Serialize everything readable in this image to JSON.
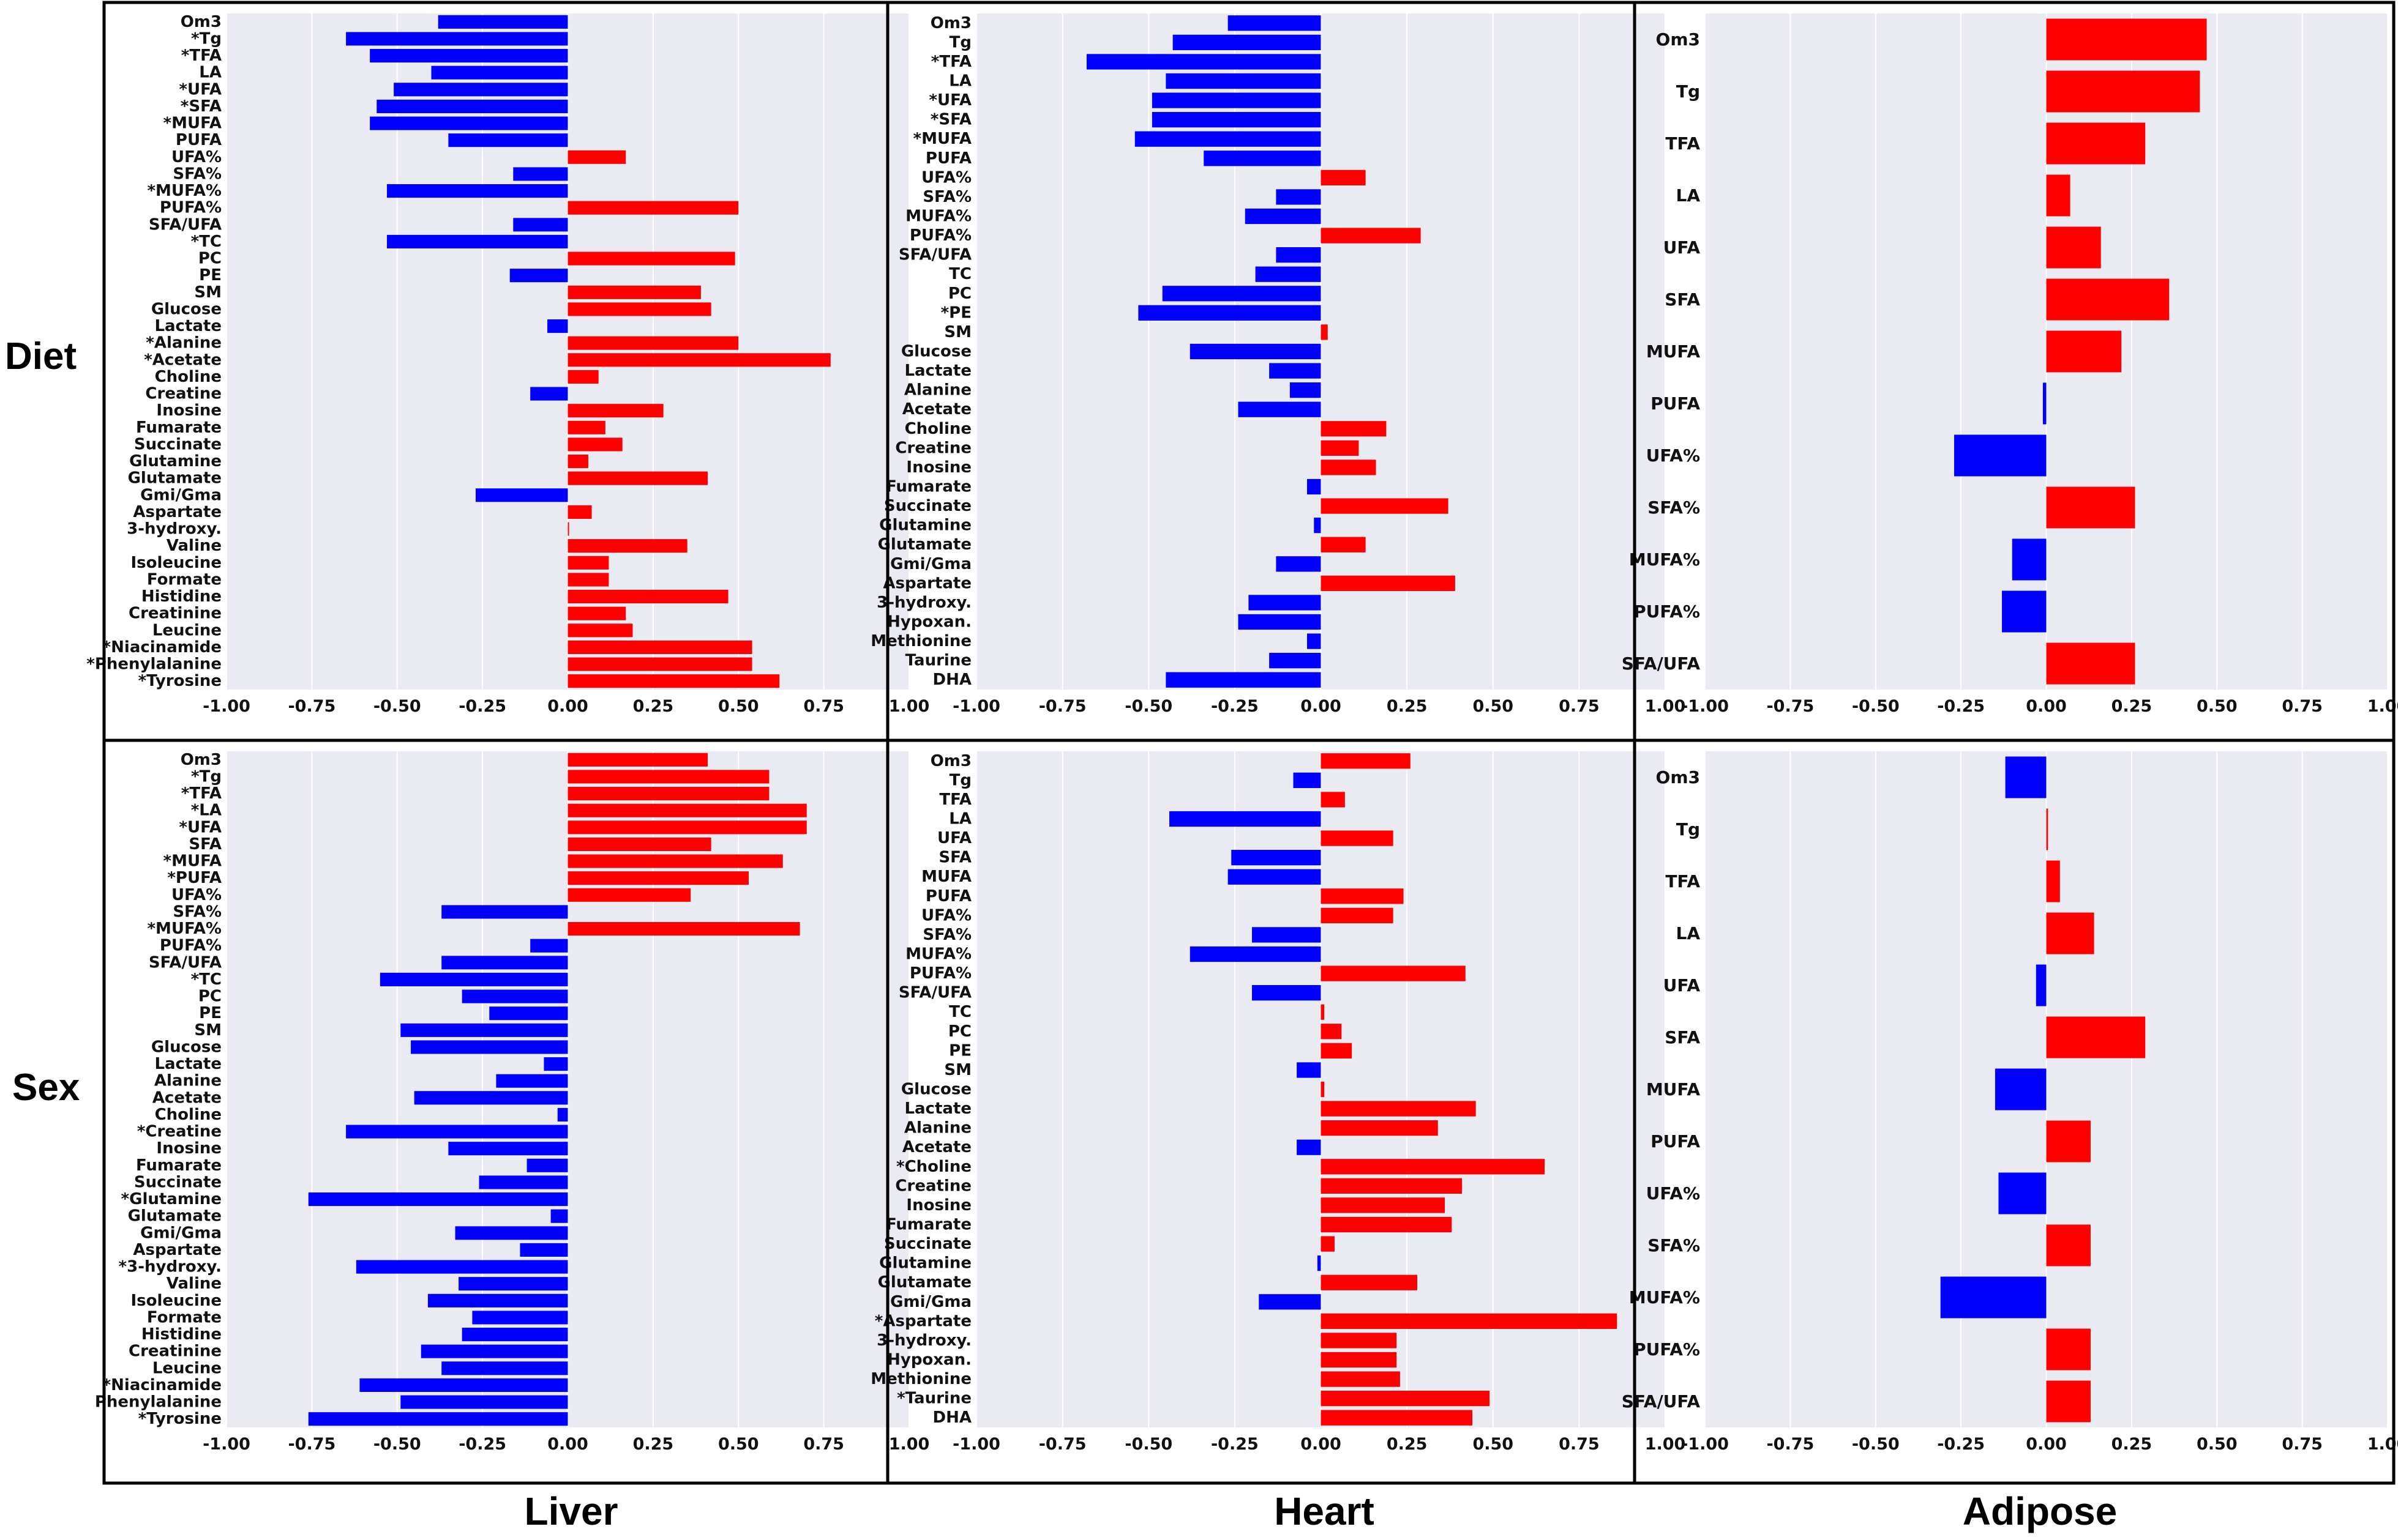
{
  "figure": {
    "row_labels": [
      "Diet",
      "Sex"
    ],
    "column_labels": [
      "Liver",
      "Heart",
      "Adipose"
    ],
    "colors": {
      "positive": "#ff0000",
      "negative": "#0000ff",
      "plot_bg": "#eaeaf2",
      "grid": "#ffffff",
      "frame": "#000000"
    }
  },
  "chart_data": [
    {
      "type": "bar",
      "orientation": "horizontal",
      "row": "Diet",
      "column": "Liver",
      "xlim": [
        -1.0,
        1.0
      ],
      "xticks": [
        "-1.00",
        "-0.75",
        "-0.50",
        "-0.25",
        "0.00",
        "0.25",
        "0.50",
        "0.75",
        "1.00"
      ],
      "categories": [
        "Om3",
        "*Tg",
        "*TFA",
        "LA",
        "*UFA",
        "*SFA",
        "*MUFA",
        "PUFA",
        "UFA%",
        "SFA%",
        "*MUFA%",
        "PUFA%",
        "SFA/UFA",
        "*TC",
        "PC",
        "PE",
        "SM",
        "Glucose",
        "Lactate",
        "*Alanine",
        "*Acetate",
        "Choline",
        "Creatine",
        "Inosine",
        "Fumarate",
        "Succinate",
        "Glutamine",
        "Glutamate",
        "Gmi/Gma",
        "Aspartate",
        "3-hydroxy.",
        "Valine",
        "Isoleucine",
        "Formate",
        "Histidine",
        "Creatinine",
        "Leucine",
        "*Niacinamide",
        "*Phenylalanine",
        "*Tyrosine"
      ],
      "values": [
        -0.38,
        -0.65,
        -0.58,
        -0.4,
        -0.51,
        -0.56,
        -0.58,
        -0.35,
        0.17,
        -0.16,
        -0.53,
        0.5,
        -0.16,
        -0.53,
        0.49,
        -0.17,
        0.39,
        0.42,
        -0.06,
        0.5,
        0.77,
        0.09,
        -0.11,
        0.28,
        0.11,
        0.16,
        0.06,
        0.41,
        -0.27,
        0.07,
        0.0,
        0.35,
        0.12,
        0.12,
        0.47,
        0.17,
        0.19,
        0.54,
        0.54,
        0.62
      ]
    },
    {
      "type": "bar",
      "orientation": "horizontal",
      "row": "Diet",
      "column": "Heart",
      "xlim": [
        -1.0,
        1.0
      ],
      "xticks": [
        "-1.00",
        "-0.75",
        "-0.50",
        "-0.25",
        "0.00",
        "0.25",
        "0.50",
        "0.75",
        "1.00"
      ],
      "categories": [
        "Om3",
        "Tg",
        "*TFA",
        "LA",
        "*UFA",
        "*SFA",
        "*MUFA",
        "PUFA",
        "UFA%",
        "SFA%",
        "MUFA%",
        "PUFA%",
        "SFA/UFA",
        "TC",
        "PC",
        "*PE",
        "SM",
        "Glucose",
        "Lactate",
        "Alanine",
        "Acetate",
        "Choline",
        "Creatine",
        "Inosine",
        "Fumarate",
        "Succinate",
        "Glutamine",
        "Glutamate",
        "Gmi/Gma",
        "Aspartate",
        "3-hydroxy.",
        "Hypoxan.",
        "Methionine",
        "Taurine",
        "DHA"
      ],
      "values": [
        -0.27,
        -0.43,
        -0.68,
        -0.45,
        -0.49,
        -0.49,
        -0.54,
        -0.34,
        0.13,
        -0.13,
        -0.22,
        0.29,
        -0.13,
        -0.19,
        -0.46,
        -0.53,
        0.02,
        -0.38,
        -0.15,
        -0.09,
        -0.24,
        0.19,
        0.11,
        0.16,
        -0.04,
        0.37,
        -0.02,
        0.13,
        -0.13,
        0.39,
        -0.21,
        -0.24,
        -0.04,
        -0.15,
        -0.45
      ]
    },
    {
      "type": "bar",
      "orientation": "horizontal",
      "row": "Diet",
      "column": "Adipose",
      "xlim": [
        -1.0,
        1.0
      ],
      "xticks": [
        "-1.00",
        "-0.75",
        "-0.50",
        "-0.25",
        "0.00",
        "0.25",
        "0.50",
        "0.75",
        "1.00"
      ],
      "categories": [
        "Om3",
        "Tg",
        "TFA",
        "LA",
        "UFA",
        "SFA",
        "MUFA",
        "PUFA",
        "UFA%",
        "SFA%",
        "MUFA%",
        "PUFA%",
        "SFA/UFA"
      ],
      "values": [
        0.47,
        0.45,
        0.29,
        0.07,
        0.16,
        0.36,
        0.22,
        -0.01,
        -0.27,
        0.26,
        -0.1,
        -0.13,
        0.26
      ]
    },
    {
      "type": "bar",
      "orientation": "horizontal",
      "row": "Sex",
      "column": "Liver",
      "xlim": [
        -1.0,
        1.0
      ],
      "xticks": [
        "-1.00",
        "-0.75",
        "-0.50",
        "-0.25",
        "0.00",
        "0.25",
        "0.50",
        "0.75",
        "1.00"
      ],
      "categories": [
        "Om3",
        "*Tg",
        "*TFA",
        "*LA",
        "*UFA",
        "SFA",
        "*MUFA",
        "*PUFA",
        "UFA%",
        "SFA%",
        "*MUFA%",
        "PUFA%",
        "SFA/UFA",
        "*TC",
        "PC",
        "PE",
        "SM",
        "Glucose",
        "Lactate",
        "Alanine",
        "Acetate",
        "Choline",
        "*Creatine",
        "Inosine",
        "Fumarate",
        "Succinate",
        "*Glutamine",
        "Glutamate",
        "Gmi/Gma",
        "Aspartate",
        "*3-hydroxy.",
        "Valine",
        "Isoleucine",
        "Formate",
        "Histidine",
        "Creatinine",
        "Leucine",
        "*Niacinamide",
        "Phenylalanine",
        "*Tyrosine"
      ],
      "values": [
        0.41,
        0.59,
        0.59,
        0.7,
        0.7,
        0.42,
        0.63,
        0.53,
        0.36,
        -0.37,
        0.68,
        -0.11,
        -0.37,
        -0.55,
        -0.31,
        -0.23,
        -0.49,
        -0.46,
        -0.07,
        -0.21,
        -0.45,
        -0.03,
        -0.65,
        -0.35,
        -0.12,
        -0.26,
        -0.76,
        -0.05,
        -0.33,
        -0.14,
        -0.62,
        -0.32,
        -0.41,
        -0.28,
        -0.31,
        -0.43,
        -0.37,
        -0.61,
        -0.49,
        -0.76
      ]
    },
    {
      "type": "bar",
      "orientation": "horizontal",
      "row": "Sex",
      "column": "Heart",
      "xlim": [
        -1.0,
        1.0
      ],
      "xticks": [
        "-1.00",
        "-0.75",
        "-0.50",
        "-0.25",
        "0.00",
        "0.25",
        "0.50",
        "0.75",
        "1.00"
      ],
      "categories": [
        "Om3",
        "Tg",
        "TFA",
        "LA",
        "UFA",
        "SFA",
        "MUFA",
        "PUFA",
        "UFA%",
        "SFA%",
        "MUFA%",
        "PUFA%",
        "SFA/UFA",
        "TC",
        "PC",
        "PE",
        "SM",
        "Glucose",
        "Lactate",
        "Alanine",
        "Acetate",
        "*Choline",
        "Creatine",
        "Inosine",
        "Fumarate",
        "Succinate",
        "Glutamine",
        "Glutamate",
        "Gmi/Gma",
        "*Aspartate",
        "3-hydroxy.",
        "Hypoxan.",
        "Methionine",
        "*Taurine",
        "DHA"
      ],
      "values": [
        0.26,
        -0.08,
        0.07,
        -0.44,
        0.21,
        -0.26,
        -0.27,
        0.24,
        0.21,
        -0.2,
        -0.38,
        0.42,
        -0.2,
        0.01,
        0.06,
        0.09,
        -0.07,
        0.01,
        0.45,
        0.34,
        -0.07,
        0.65,
        0.41,
        0.36,
        0.38,
        0.04,
        -0.01,
        0.28,
        -0.18,
        0.86,
        0.22,
        0.22,
        0.23,
        0.49,
        0.44
      ]
    },
    {
      "type": "bar",
      "orientation": "horizontal",
      "row": "Sex",
      "column": "Adipose",
      "xlim": [
        -1.0,
        1.0
      ],
      "xticks": [
        "-1.00",
        "-0.75",
        "-0.50",
        "-0.25",
        "0.00",
        "0.25",
        "0.50",
        "0.75",
        "1.00"
      ],
      "categories": [
        "Om3",
        "Tg",
        "TFA",
        "LA",
        "UFA",
        "SFA",
        "MUFA",
        "PUFA",
        "UFA%",
        "SFA%",
        "MUFA%",
        "PUFA%",
        "SFA/UFA"
      ],
      "values": [
        -0.12,
        0.005,
        0.04,
        0.14,
        -0.03,
        0.29,
        -0.15,
        0.13,
        -0.14,
        0.13,
        -0.31,
        0.13,
        0.13
      ]
    }
  ]
}
